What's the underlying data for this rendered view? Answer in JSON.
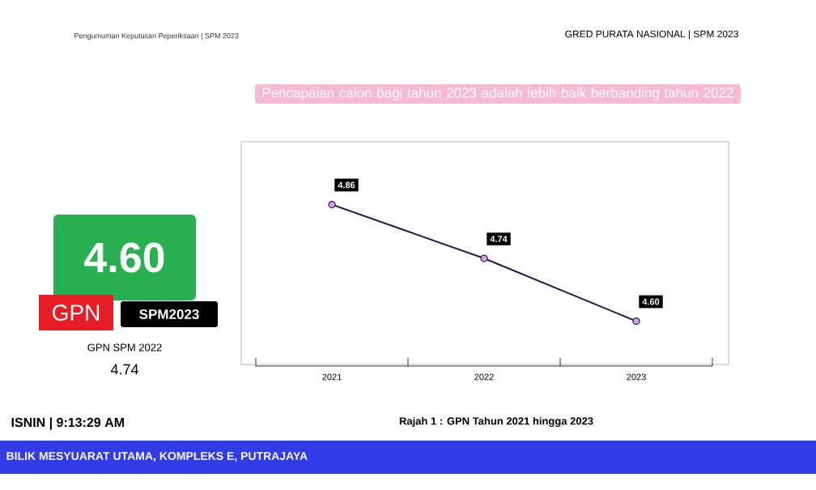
{
  "chart_data": {
    "type": "line",
    "title": "Pencapaian calon bagi tahun 2023 adalah lebih baik berbanding tahun 2022",
    "categories": [
      "2021",
      "2022",
      "2023"
    ],
    "values": [
      4.86,
      4.74,
      4.6
    ],
    "value_labels": [
      "4.86",
      "4.74",
      "4.60"
    ],
    "color": "#1b1f4a",
    "marker": "circle",
    "line_style": "solid",
    "ylim": [
      4.5,
      5.0
    ],
    "tick_labels": "x",
    "annotations": [
      "Pengumuman Keputusan Peperiksaan | SPM 2023",
      "GRED PURATA NASIONAL | SPM 2023",
      "4.60",
      "GPN",
      "SPM2023",
      "GPN SPM 2022",
      "4.74",
      "ISNIN | 9:13:29 AM",
      "Rajah 1 : GPN Tahun 2021 hingga 2023",
      "BILIK MESYUARAT UTAMA, KOMPLEKS E, PUTRAJAYA"
    ]
  }
}
